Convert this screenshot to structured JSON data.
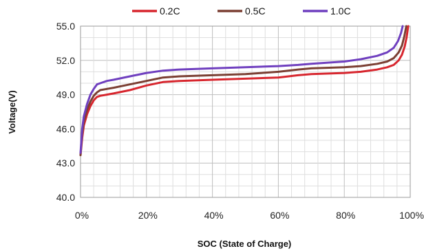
{
  "chart_data": {
    "type": "line",
    "title": "",
    "xlabel": "SOC (State of Charge)",
    "ylabel": "Voltage(V)",
    "xlim": [
      0,
      100
    ],
    "ylim": [
      40,
      55
    ],
    "x_ticks": [
      "0%",
      "20%",
      "40%",
      "60%",
      "80%",
      "100%"
    ],
    "x_tick_values": [
      0,
      20,
      40,
      60,
      80,
      100
    ],
    "y_ticks": [
      "40.0",
      "43.0",
      "46.0",
      "49.0",
      "52.0",
      "55.0"
    ],
    "y_tick_values": [
      40,
      43,
      46,
      49,
      52,
      55
    ],
    "y_minor_step": 1,
    "x_minor_step": 4,
    "grid": true,
    "legend_position": "top-center",
    "series": [
      {
        "name": "0.2C",
        "color": "#d7262e",
        "points": [
          [
            0,
            43.7
          ],
          [
            0.5,
            45.2
          ],
          [
            1,
            46.3
          ],
          [
            2,
            47.3
          ],
          [
            3,
            48.0
          ],
          [
            4,
            48.5
          ],
          [
            5,
            48.8
          ],
          [
            6,
            48.9
          ],
          [
            8,
            49.0
          ],
          [
            10,
            49.1
          ],
          [
            15,
            49.4
          ],
          [
            20,
            49.8
          ],
          [
            25,
            50.1
          ],
          [
            30,
            50.2
          ],
          [
            40,
            50.3
          ],
          [
            50,
            50.4
          ],
          [
            60,
            50.5
          ],
          [
            66,
            50.7
          ],
          [
            70,
            50.8
          ],
          [
            80,
            50.9
          ],
          [
            85,
            51.0
          ],
          [
            90,
            51.2
          ],
          [
            93,
            51.4
          ],
          [
            95,
            51.6
          ],
          [
            96.5,
            52.0
          ],
          [
            97.5,
            52.5
          ],
          [
            98.3,
            53.2
          ],
          [
            98.9,
            54.0
          ],
          [
            99.4,
            55.0
          ]
        ]
      },
      {
        "name": "0.5C",
        "color": "#7b3f33",
        "points": [
          [
            0,
            43.7
          ],
          [
            0.5,
            45.6
          ],
          [
            1,
            46.7
          ],
          [
            2,
            47.7
          ],
          [
            3,
            48.4
          ],
          [
            4,
            48.9
          ],
          [
            5,
            49.2
          ],
          [
            6,
            49.4
          ],
          [
            8,
            49.5
          ],
          [
            10,
            49.6
          ],
          [
            15,
            49.9
          ],
          [
            20,
            50.2
          ],
          [
            25,
            50.5
          ],
          [
            30,
            50.6
          ],
          [
            40,
            50.7
          ],
          [
            50,
            50.8
          ],
          [
            60,
            51.0
          ],
          [
            66,
            51.2
          ],
          [
            70,
            51.3
          ],
          [
            80,
            51.4
          ],
          [
            85,
            51.5
          ],
          [
            90,
            51.7
          ],
          [
            93,
            51.9
          ],
          [
            95,
            52.2
          ],
          [
            96.5,
            52.7
          ],
          [
            97.5,
            53.3
          ],
          [
            98.2,
            54.1
          ],
          [
            98.8,
            55.0
          ]
        ]
      },
      {
        "name": "1.0C",
        "color": "#6f3fbf",
        "points": [
          [
            0,
            43.9
          ],
          [
            0.5,
            46.0
          ],
          [
            1,
            47.1
          ],
          [
            2,
            48.2
          ],
          [
            3,
            49.0
          ],
          [
            4,
            49.5
          ],
          [
            5,
            49.9
          ],
          [
            6,
            50.0
          ],
          [
            8,
            50.2
          ],
          [
            10,
            50.3
          ],
          [
            15,
            50.6
          ],
          [
            20,
            50.9
          ],
          [
            25,
            51.1
          ],
          [
            30,
            51.2
          ],
          [
            40,
            51.3
          ],
          [
            50,
            51.4
          ],
          [
            60,
            51.5
          ],
          [
            66,
            51.6
          ],
          [
            70,
            51.7
          ],
          [
            80,
            51.9
          ],
          [
            85,
            52.1
          ],
          [
            90,
            52.4
          ],
          [
            93,
            52.7
          ],
          [
            95,
            53.1
          ],
          [
            96.3,
            53.7
          ],
          [
            97.2,
            54.4
          ],
          [
            97.7,
            55.0
          ]
        ]
      }
    ]
  }
}
